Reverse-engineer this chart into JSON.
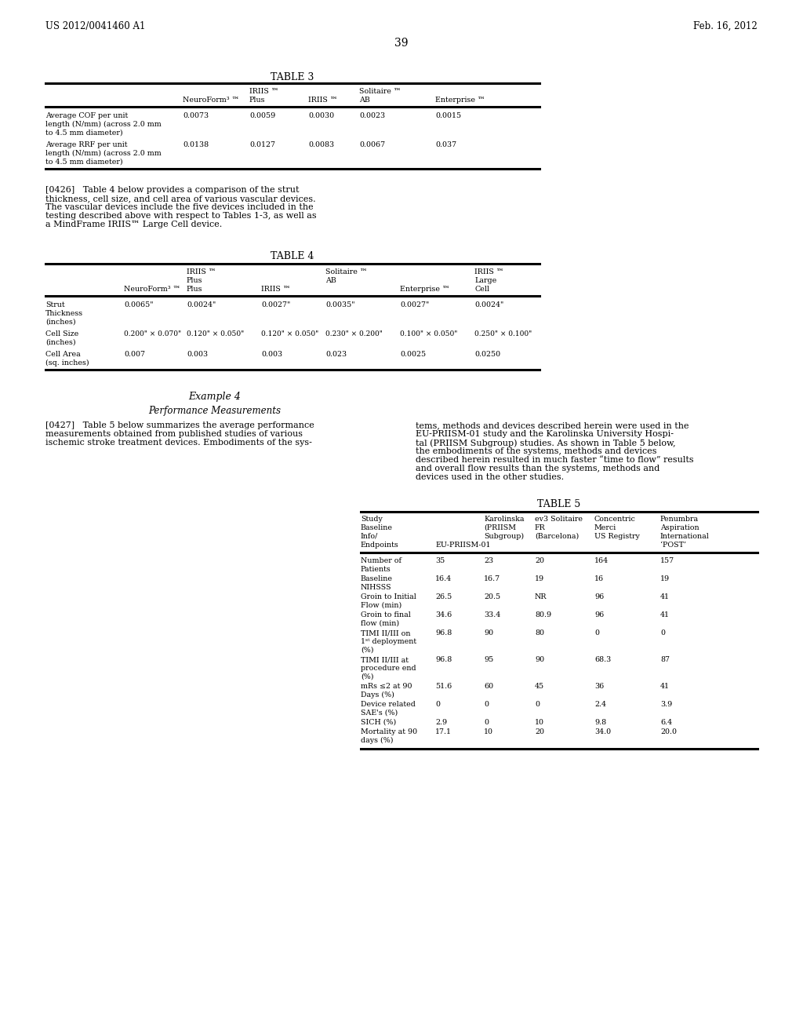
{
  "bg_color": "#ffffff",
  "header_left": "US 2012/0041460 A1",
  "header_right": "Feb. 16, 2012",
  "page_number": "39",
  "table3_title": "TABLE 3",
  "table4_title": "TABLE 4",
  "table5_title": "TABLE 5",
  "para0426_lines": [
    "[0426]   Table 4 below provides a comparison of the strut",
    "thickness, cell size, and cell area of various vascular devices.",
    "The vascular devices include the five devices included in the",
    "testing described above with respect to Tables 1-3, as well as",
    "a MindFrame IRIIS™ Large Cell device."
  ],
  "para0427_left_lines": [
    "[0427]   Table 5 below summarizes the average performance",
    "measurements obtained from published studies of various",
    "ischemic stroke treatment devices. Embodiments of the sys-"
  ],
  "para0427_right_lines": [
    "tems, methods and devices described herein were used in the",
    "EU-PRIISM-01 study and the Karolinska University Hospi-",
    "tal (PRIISM Subgroup) studies. As shown in Table 5 below,",
    "the embodiments of the systems, methods and devices",
    "described herein resulted in much faster “time to flow” results",
    "and overall flow results than the systems, methods and",
    "devices used in the other studies."
  ],
  "example4_title": "Example 4",
  "example4_subtitle": "Performance Measurements",
  "t3_col_headers_row1": [
    "",
    "",
    "IRIIS ™",
    "",
    "Solitaire ™",
    ""
  ],
  "t3_col_headers_row2": [
    "",
    "NeuroForm³ ™",
    "Plus",
    "IRIIS ™",
    "AB",
    "Enterprise ™"
  ],
  "t3_rows": [
    [
      "Average COF per unit",
      "0.0073",
      "0.0059",
      "0.0030",
      "0.0023",
      "0.0015"
    ],
    [
      "length (N/mm) (across 2.0 mm",
      "",
      "",
      "",
      "",
      ""
    ],
    [
      "to 4.5 mm diameter)",
      "",
      "",
      "",
      "",
      ""
    ],
    [
      "Average RRF per unit",
      "0.0138",
      "0.0127",
      "0.0083",
      "0.0067",
      "0.037"
    ],
    [
      "length (N/mm) (across 2.0 mm",
      "",
      "",
      "",
      "",
      ""
    ],
    [
      "to 4.5 mm diameter)",
      "",
      "",
      "",
      "",
      ""
    ]
  ],
  "t4_col_headers_row1": [
    "",
    "",
    "IRIIS ™",
    "",
    "Solitaire ™",
    "",
    "IRIIS ™"
  ],
  "t4_col_headers_row2": [
    "",
    "",
    "Plus",
    "",
    "AB",
    "",
    "Large"
  ],
  "t4_col_headers_row3": [
    "",
    "NeuroForm³ ™",
    "Plus",
    "IRIIS ™",
    "AB",
    "Enterprise ™",
    "Cell"
  ],
  "t4_rows": [
    [
      "Strut",
      "0.0065\"",
      "0.0024\"",
      "0.0027\"",
      "0.0035\"",
      "0.0027\"",
      "0.0024\""
    ],
    [
      "Thickness",
      "",
      "",
      "",
      "",
      "",
      ""
    ],
    [
      "(inches)",
      "",
      "",
      "",
      "",
      "",
      ""
    ],
    [
      "Cell Size",
      "0.200\" × 0.070\"",
      "0.120\" × 0.050\"",
      "0.120\" × 0.050\"",
      "0.230\" × 0.200\"",
      "0.100\" × 0.050\"",
      "0.250\" × 0.100\""
    ],
    [
      "(inches)",
      "",
      "",
      "",
      "",
      "",
      ""
    ],
    [
      "Cell Area",
      "0.007",
      "0.003",
      "0.003",
      "0.023",
      "0.0025",
      "0.0250"
    ],
    [
      "(sq. inches)",
      "",
      "",
      "",
      "",
      "",
      ""
    ]
  ],
  "t5_col_headers": [
    [
      "Study",
      "",
      "Karolinska",
      "ev3 Solitaire",
      "Concentric",
      "Penumbra"
    ],
    [
      "Baseline",
      "",
      "(PRIISM",
      "FR",
      "Merci",
      "Aspiration"
    ],
    [
      "Info/",
      "",
      "Subgroup)",
      "(Barcelona)",
      "US Registry",
      "International"
    ],
    [
      "Endpoints",
      "EU-PRIISM-01",
      "",
      "",
      "",
      "‘POST’"
    ]
  ],
  "t5_rows": [
    [
      "Number of",
      "35",
      "23",
      "20",
      "164",
      "157"
    ],
    [
      "Patients",
      "",
      "",
      "",
      "",
      ""
    ],
    [
      "Baseline",
      "16.4",
      "16.7",
      "19",
      "16",
      "19"
    ],
    [
      "NIHSSS",
      "",
      "",
      "",
      "",
      ""
    ],
    [
      "Groin to Initial",
      "26.5",
      "20.5",
      "NR",
      "96",
      "41"
    ],
    [
      "Flow (min)",
      "",
      "",
      "",
      "",
      ""
    ],
    [
      "Groin to final",
      "34.6",
      "33.4",
      "80.9",
      "96",
      "41"
    ],
    [
      "flow (min)",
      "",
      "",
      "",
      "",
      ""
    ],
    [
      "TIMI II/III on",
      "96.8",
      "90",
      "80",
      "0",
      "0"
    ],
    [
      "1ˢᵗ deployment",
      "",
      "",
      "",
      "",
      ""
    ],
    [
      "(%)",
      "",
      "",
      "",
      "",
      ""
    ],
    [
      "TIMI II/III at",
      "96.8",
      "95",
      "90",
      "68.3",
      "87"
    ],
    [
      "procedure end",
      "",
      "",
      "",
      "",
      ""
    ],
    [
      "(%)",
      "",
      "",
      "",
      "",
      ""
    ],
    [
      "mRs ≤2 at 90",
      "51.6",
      "60",
      "45",
      "36",
      "41"
    ],
    [
      "Days (%)",
      "",
      "",
      "",
      "",
      ""
    ],
    [
      "Device related",
      "0",
      "0",
      "0",
      "2.4",
      "3.9"
    ],
    [
      "SAE's (%)",
      "",
      "",
      "",
      "",
      ""
    ],
    [
      "SICH (%)",
      "2.9",
      "0",
      "10",
      "9.8",
      "6.4"
    ],
    [
      "Mortality at 90",
      "17.1",
      "10",
      "20",
      "34.0",
      "20.0"
    ],
    [
      "days (%)",
      "",
      "",
      "",
      "",
      ""
    ]
  ]
}
